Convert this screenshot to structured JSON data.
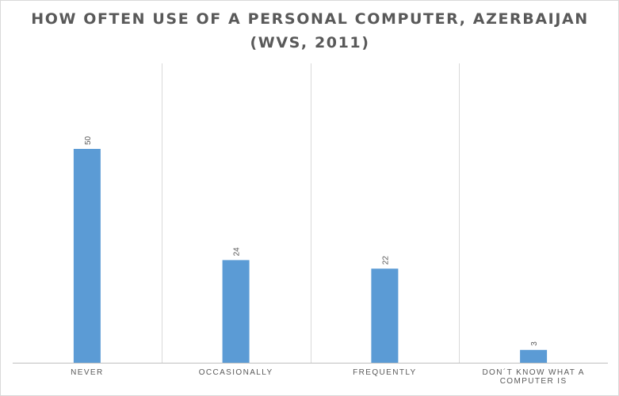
{
  "chart_data": {
    "type": "bar",
    "title_lines": [
      "HOW OFTEN USE OF A PERSONAL COMPUTER, AZERBAIJAN",
      "(WVS, 2011)"
    ],
    "categories": [
      [
        "NEVER"
      ],
      [
        "OCCASIONALLY"
      ],
      [
        "FREQUENTLY"
      ],
      [
        "DON´T KNOW WHAT A",
        "COMPUTER IS"
      ]
    ],
    "values": [
      50,
      24,
      22,
      3
    ],
    "ylim": [
      0,
      70
    ],
    "grid": "vertical category separators",
    "legend": "none",
    "colors": {
      "bar": "#5b9bd5"
    }
  }
}
